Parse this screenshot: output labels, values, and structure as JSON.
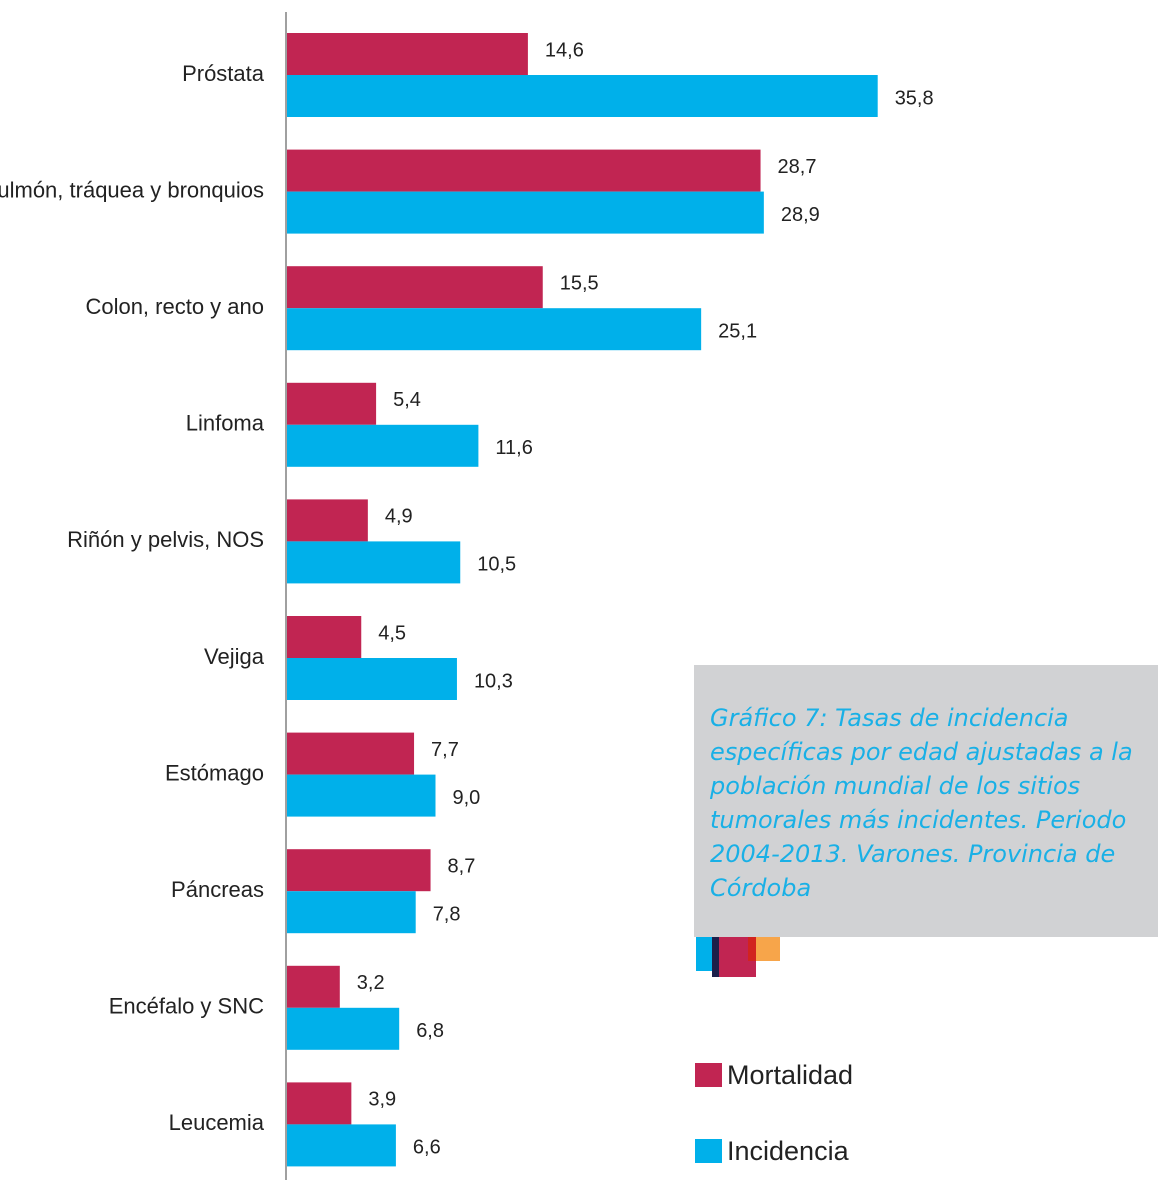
{
  "caption": "Gráfico 7: Tasas de incidencia específicas por edad ajustadas a la población mundial de los sitios tumorales más incidentes. Periodo 2004-2013. Varones. Provincia de Córdoba",
  "chart_data": {
    "type": "bar",
    "orientation": "horizontal",
    "categories": [
      "Próstata",
      "Pulmón, tráquea y bronquios",
      "Colon, recto y ano",
      "Linfoma",
      "Riñón y pelvis, NOS",
      "Vejiga",
      "Estómago",
      "Páncreas",
      "Encéfalo y SNC",
      "Leucemia"
    ],
    "series": [
      {
        "name": "Mortalidad",
        "color": "#c12552",
        "values": [
          14.6,
          28.7,
          15.5,
          5.4,
          4.9,
          4.5,
          7.7,
          8.7,
          3.2,
          3.9
        ],
        "labels": [
          "14,6",
          "28,7",
          "15,5",
          "5,4",
          "4,9",
          "4,5",
          "7,7",
          "8,7",
          "3,2",
          "3,9"
        ]
      },
      {
        "name": "Incidencia",
        "color": "#00b0ea",
        "values": [
          35.8,
          28.9,
          25.1,
          11.6,
          10.5,
          10.3,
          9.0,
          7.8,
          6.8,
          6.6
        ],
        "labels": [
          "35,8",
          "28,9",
          "25,1",
          "11,6",
          "10,5",
          "10,3",
          "9,0",
          "7,8",
          "6,8",
          "6,6"
        ]
      }
    ],
    "xlim": [
      0,
      40
    ],
    "grid": false,
    "legend": "bottom-right",
    "axis_color": "#a0a0a0"
  },
  "decoration": {
    "colors": [
      "#00b0ea",
      "#1c1f4a",
      "#c12552",
      "#d2231f",
      "#f7a54a"
    ]
  }
}
